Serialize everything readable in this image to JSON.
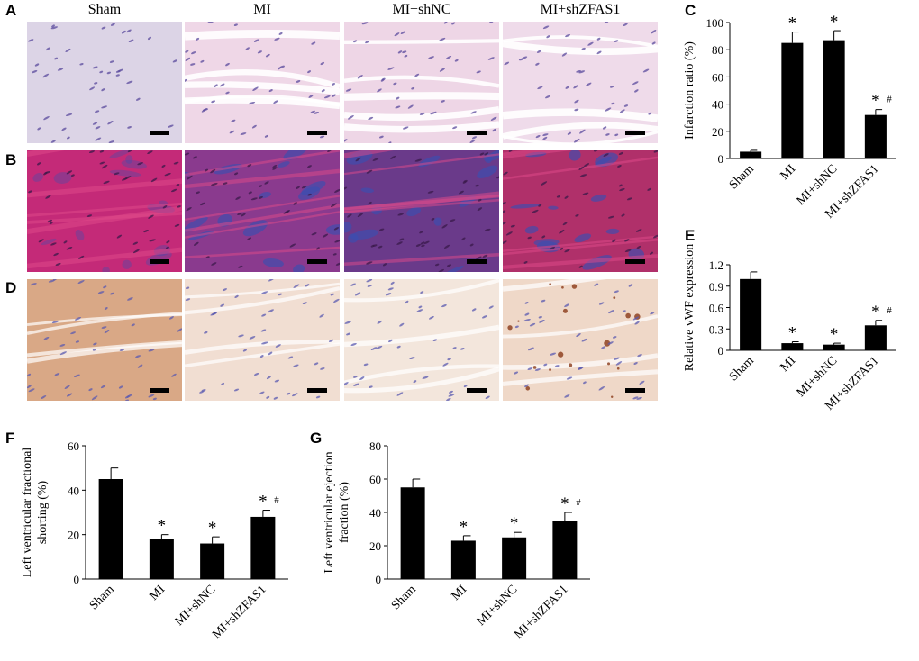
{
  "panel_letters": {
    "a": "A",
    "b": "B",
    "c": "C",
    "d": "D",
    "e": "E",
    "f": "F",
    "g": "G"
  },
  "columns": [
    "Sham",
    "MI",
    "MI+shNC",
    "MI+shZFAS1"
  ],
  "histology": {
    "he": {
      "bg": [
        "#dcd4e6",
        "#efd7e7",
        "#eed6e6",
        "#efdbea"
      ],
      "nuclei": "#5a4a9c"
    },
    "masson": {
      "bg": [
        "#c42a78",
        "#8a3a8e",
        "#6a3a8a",
        "#b0306a"
      ],
      "blue": "#3a4fb0"
    },
    "ihc": {
      "bg": [
        "#d9a886",
        "#f1ded2",
        "#f3e6dc",
        "#efd8c8"
      ],
      "nuclei": "#5a5ab0",
      "brown": "#8a3a18"
    }
  },
  "chart_data": [
    {
      "id": "C",
      "type": "bar",
      "categories": [
        "Sham",
        "MI",
        "MI+shNC",
        "MI+shZFAS1"
      ],
      "values": [
        5,
        85,
        87,
        32
      ],
      "errors": [
        1,
        8,
        7,
        4
      ],
      "annotations": [
        "",
        "*",
        "*",
        "*#"
      ],
      "ylabel": "Infarction ratio (%)",
      "ylim": [
        0,
        100
      ],
      "yticks": [
        0,
        20,
        40,
        60,
        80,
        100
      ],
      "bar_color": "#000000"
    },
    {
      "id": "E",
      "type": "bar",
      "categories": [
        "Sham",
        "MI",
        "MI+shNC",
        "MI+shZFAS1"
      ],
      "values": [
        1.0,
        0.1,
        0.08,
        0.35
      ],
      "errors": [
        0.1,
        0.02,
        0.02,
        0.07
      ],
      "annotations": [
        "",
        "*",
        "*",
        "*#"
      ],
      "ylabel": "Relative vWF expression",
      "ylim": [
        0,
        1.2
      ],
      "yticks": [
        "0",
        "0.3",
        "0.6",
        "0.9",
        "1.2"
      ],
      "bar_color": "#000000"
    },
    {
      "id": "F",
      "type": "bar",
      "categories": [
        "Sham",
        "MI",
        "MI+shNC",
        "MI+shZFAS1"
      ],
      "values": [
        45,
        18,
        16,
        28
      ],
      "errors": [
        5,
        2,
        3,
        3
      ],
      "annotations": [
        "",
        "*",
        "*",
        "*#"
      ],
      "ylabel": [
        "Left ventricular fractional",
        "shorting (%)"
      ],
      "ylim": [
        0,
        60
      ],
      "yticks": [
        0,
        20,
        40,
        60
      ],
      "bar_color": "#000000"
    },
    {
      "id": "G",
      "type": "bar",
      "categories": [
        "Sham",
        "MI",
        "MI+shNC",
        "MI+shZFAS1"
      ],
      "values": [
        55,
        23,
        25,
        35
      ],
      "errors": [
        5,
        3,
        3,
        5
      ],
      "annotations": [
        "",
        "*",
        "*",
        "*#"
      ],
      "ylabel": [
        "Left ventricular ejection",
        "fraction (%)"
      ],
      "ylim": [
        0,
        80
      ],
      "yticks": [
        0,
        20,
        40,
        60,
        80
      ],
      "bar_color": "#000000"
    }
  ]
}
